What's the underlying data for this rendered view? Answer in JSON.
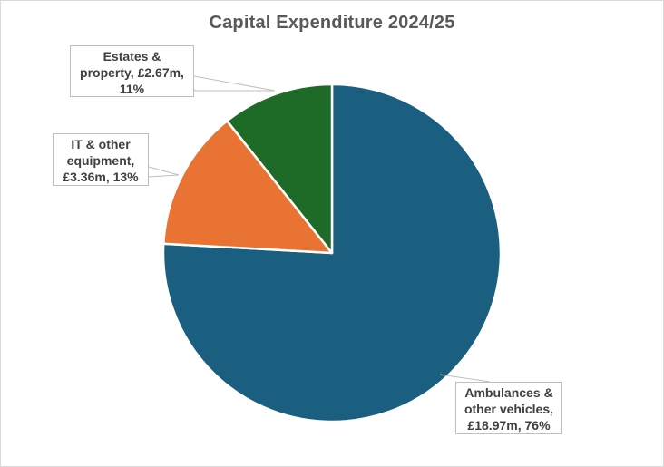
{
  "chart_data": {
    "type": "pie",
    "title": "Capital Expenditure 2024/25",
    "start_angle_deg": 0,
    "direction": "clockwise",
    "unit": "£m",
    "categories": [
      "Ambulances & other vehicles",
      "IT & other equipment",
      "Estates & property"
    ],
    "values": [
      18.97,
      3.36,
      2.67
    ],
    "percentages": [
      76,
      13,
      11
    ],
    "colors": [
      "#1a5e80",
      "#e87332",
      "#1e6b28"
    ],
    "legend": "none",
    "data_labels": [
      "Ambulances  &\nother vehicles,\n£18.97m,  76%",
      "IT & other\nequipment,\n£3.36m,  13%",
      "Estates &\nproperty,  £2.67m,\n11%"
    ]
  },
  "labels": {
    "ambulances": "Ambulances  &\nother vehicles,\n£18.97m,  76%",
    "it": "IT & other\nequipment,\n£3.36m,  13%",
    "estates": "Estates &\nproperty,  £2.67m,\n11%"
  }
}
